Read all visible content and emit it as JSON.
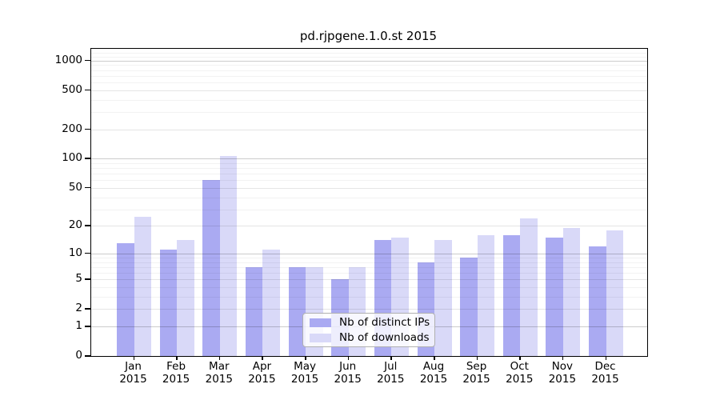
{
  "chart_data": {
    "type": "bar",
    "title": "pd.rjpgene.1.0.st 2015",
    "categories": [
      "Jan",
      "Feb",
      "Mar",
      "Apr",
      "May",
      "Jun",
      "Jul",
      "Aug",
      "Sep",
      "Oct",
      "Nov",
      "Dec"
    ],
    "x_year": "2015",
    "series": [
      {
        "name": "Nb of distinct IPs",
        "color": "#aaaaf2",
        "values": [
          13,
          11,
          61,
          7,
          7,
          5,
          14,
          8,
          9,
          16,
          15,
          12
        ]
      },
      {
        "name": "Nb of downloads",
        "color": "#d9d9f8",
        "values": [
          25,
          14,
          107,
          11,
          7,
          7,
          15,
          14,
          16,
          24,
          19,
          18
        ]
      }
    ],
    "y_scale": "log10(1+y)",
    "ylim": [
      0,
      1320
    ],
    "y_ticks": [
      0,
      1,
      2,
      5,
      10,
      20,
      50,
      100,
      200,
      500,
      1000
    ],
    "y_tick_labels": [
      "0",
      "1",
      "2",
      "5",
      "10",
      "20",
      "50",
      "100",
      "200",
      "500",
      "1000"
    ],
    "grid": "horizontal major and minor gridlines drawn over bars",
    "minor_grid_values": [
      3,
      4,
      6,
      7,
      8,
      9,
      30,
      40,
      60,
      70,
      80,
      90,
      300,
      400,
      600,
      700,
      800,
      900,
      1100,
      1200
    ],
    "mid_grid_values": [
      2,
      5,
      20,
      50,
      200,
      500
    ],
    "major_grid_values": [
      1,
      10,
      100,
      1000
    ],
    "legend_position": "inside-bottom-center"
  },
  "colors": {
    "background": "#ffffff",
    "axis": "#000000",
    "grid_major": "rgba(0,0,0,0.20)",
    "grid_mid": "rgba(0,0,0,0.10)",
    "grid_minor": "rgba(0,0,0,0.05)",
    "legend_border": "#b0b0b0"
  }
}
